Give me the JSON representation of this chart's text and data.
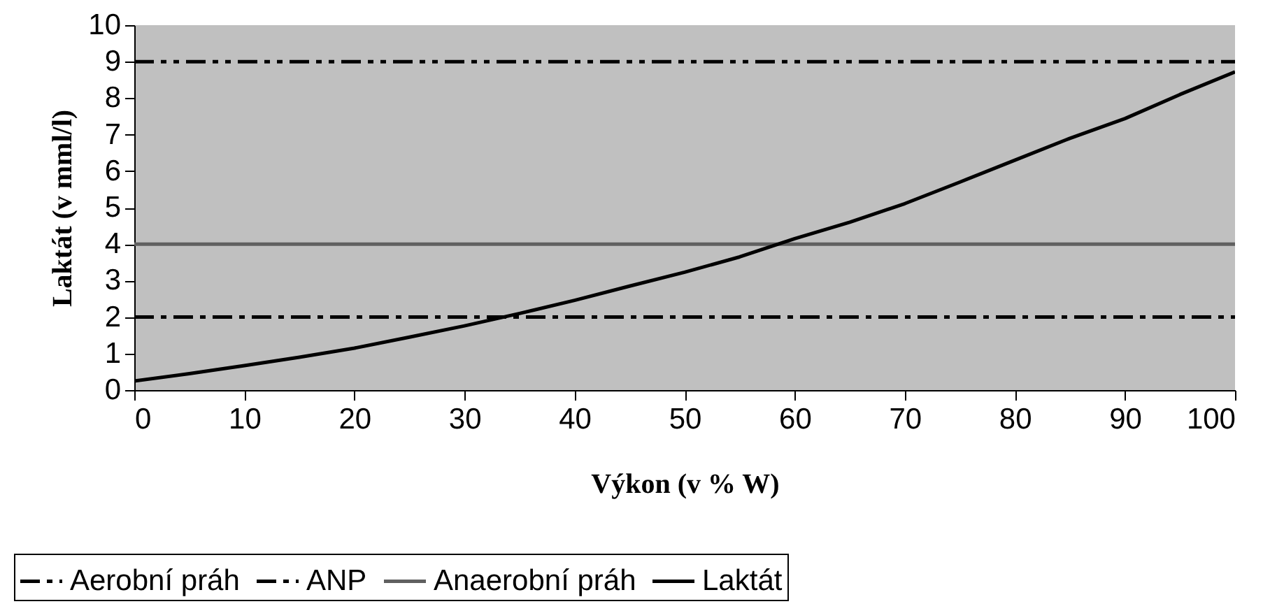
{
  "chart_data": {
    "type": "line",
    "xlabel": "Výkon (v % W)",
    "ylabel": "Laktát (v mml/l)",
    "x": [
      0,
      5,
      10,
      15,
      20,
      25,
      30,
      35,
      40,
      45,
      50,
      55,
      60,
      65,
      70,
      75,
      80,
      85,
      90,
      95,
      100
    ],
    "series": [
      {
        "name": "Aerobní práh",
        "color": "#000000",
        "line_style": "dashed",
        "values": [
          2,
          2,
          2,
          2,
          2,
          2,
          2,
          2,
          2,
          2,
          2,
          2,
          2,
          2,
          2,
          2,
          2,
          2,
          2,
          2,
          2
        ]
      },
      {
        "name": "ANP",
        "color": "#000000",
        "line_style": "dotted",
        "values": [
          9,
          9,
          9,
          9,
          9,
          9,
          9,
          9,
          9,
          9,
          9,
          9,
          9,
          9,
          9,
          9,
          9,
          9,
          9,
          9,
          9
        ]
      },
      {
        "name": "Anaerobní práh",
        "color": "#606060",
        "line_style": "solid",
        "values": [
          4,
          4,
          4,
          4,
          4,
          4,
          4,
          4,
          4,
          4,
          4,
          4,
          4,
          4,
          4,
          4,
          4,
          4,
          4,
          4,
          4
        ]
      },
      {
        "name": "Laktát",
        "color": "#000000",
        "line_style": "solid",
        "values": [
          0.25,
          0.45,
          0.67,
          0.9,
          1.15,
          1.45,
          1.76,
          2.1,
          2.46,
          2.85,
          3.23,
          3.65,
          4.15,
          4.6,
          5.11,
          5.7,
          6.3,
          6.9,
          7.44,
          8.1,
          8.72
        ]
      }
    ],
    "xlim": [
      0,
      100
    ],
    "xticks": [
      0,
      10,
      20,
      30,
      40,
      50,
      60,
      70,
      80,
      90,
      100
    ],
    "ylim": [
      0,
      10
    ],
    "yticks": [
      0,
      1,
      2,
      3,
      4,
      5,
      6,
      7,
      8,
      9,
      10
    ],
    "grid": false,
    "legend": "bottom",
    "marker": "none"
  }
}
